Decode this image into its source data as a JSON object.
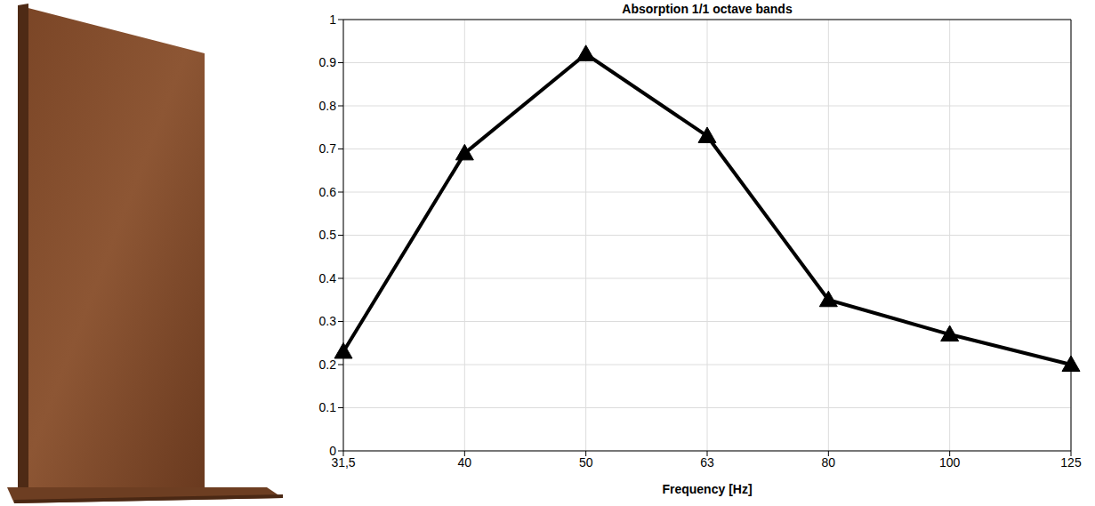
{
  "chart_data": {
    "type": "line",
    "title": "Absorption 1/1 octave bands",
    "x_label": "Frequency [Hz]",
    "categories": [
      "31,5",
      "40",
      "50",
      "63",
      "80",
      "100",
      "125"
    ],
    "values": [
      0.23,
      0.69,
      0.92,
      0.73,
      0.35,
      0.27,
      0.2
    ],
    "color": "#000000",
    "marker": "triangle",
    "ylim": [
      0,
      1
    ],
    "yticks": [
      0,
      0.1,
      0.2,
      0.3,
      0.4,
      0.5,
      0.6,
      0.7,
      0.8,
      0.9,
      1
    ],
    "grid": true
  }
}
